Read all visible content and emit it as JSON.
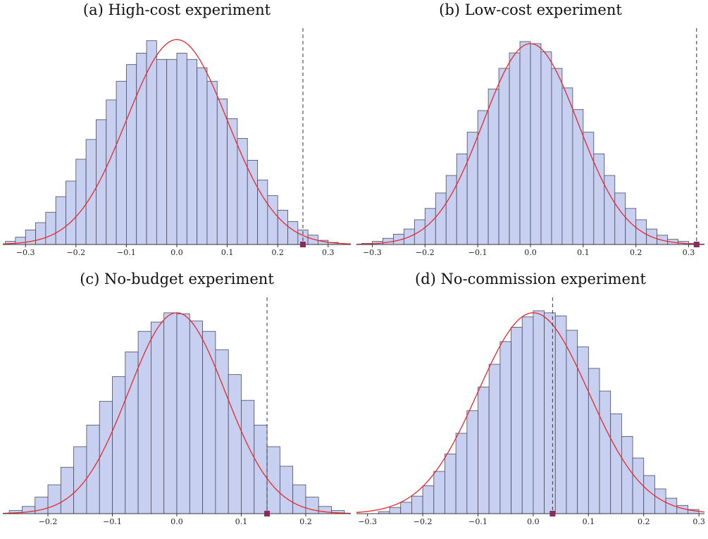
{
  "chart_data": [
    {
      "type": "bar",
      "title": "(a) High-cost experiment",
      "xlabel": "",
      "ylabel": "",
      "xlim": [
        -0.345,
        0.345
      ],
      "ylim": [
        0,
        1.04
      ],
      "bin_start": -0.34,
      "bin_width": 0.02,
      "values": [
        0.015,
        0.035,
        0.07,
        0.105,
        0.155,
        0.23,
        0.305,
        0.41,
        0.505,
        0.6,
        0.695,
        0.785,
        0.865,
        0.92,
        0.98,
        0.89,
        0.89,
        0.92,
        0.89,
        0.85,
        0.785,
        0.7,
        0.605,
        0.51,
        0.405,
        0.31,
        0.235,
        0.165,
        0.11,
        0.07,
        0.045,
        0.02,
        0.01
      ],
      "normal_fit": {
        "mean": 0.0,
        "sd": 0.1,
        "peak": 0.985
      },
      "observed": 0.25,
      "xticks": [
        -0.3,
        -0.2,
        -0.1,
        0.0,
        0.1,
        0.2,
        0.3
      ],
      "xtick_labels": [
        "−0.3",
        "−0.2",
        "−0.1",
        "0.0",
        "0.1",
        "0.2",
        "0.3"
      ]
    },
    {
      "type": "bar",
      "title": "(b) Low-cost experiment",
      "xlabel": "",
      "ylabel": "",
      "xlim": [
        -0.33,
        0.33
      ],
      "ylim": [
        0,
        1.05
      ],
      "bin_start": -0.32,
      "bin_width": 0.02,
      "values": [
        0.005,
        0.015,
        0.03,
        0.05,
        0.075,
        0.12,
        0.175,
        0.25,
        0.335,
        0.44,
        0.545,
        0.65,
        0.755,
        0.855,
        0.93,
        0.985,
        0.975,
        0.935,
        0.855,
        0.76,
        0.655,
        0.545,
        0.44,
        0.335,
        0.25,
        0.175,
        0.12,
        0.075,
        0.045,
        0.025,
        0.015,
        0.005
      ],
      "normal_fit": {
        "mean": 0.0,
        "sd": 0.09,
        "peak": 0.975
      },
      "observed": 0.315,
      "xticks": [
        -0.3,
        -0.2,
        -0.1,
        0.0,
        0.1,
        0.2,
        0.3
      ],
      "xtick_labels": [
        "−0.3",
        "−0.2",
        "−0.1",
        "0.0",
        "0.1",
        "0.2",
        "0.3"
      ]
    },
    {
      "type": "bar",
      "title": "(c) No-budget experiment",
      "xlabel": "",
      "ylabel": "",
      "xlim": [
        -0.27,
        0.27
      ],
      "ylim": [
        0,
        1.05
      ],
      "bin_start": -0.26,
      "bin_width": 0.02,
      "values": [
        0.015,
        0.035,
        0.08,
        0.14,
        0.225,
        0.325,
        0.43,
        0.545,
        0.665,
        0.785,
        0.885,
        0.93,
        0.975,
        0.97,
        0.935,
        0.885,
        0.795,
        0.675,
        0.55,
        0.43,
        0.325,
        0.23,
        0.14,
        0.08,
        0.035,
        0.015
      ],
      "normal_fit": {
        "mean": 0.0,
        "sd": 0.075,
        "peak": 0.975
      },
      "observed": 0.14,
      "xticks": [
        -0.2,
        -0.1,
        0.0,
        0.1,
        0.2
      ],
      "xtick_labels": [
        "−0.2",
        "−0.1",
        "0.0",
        "0.1",
        "0.2"
      ]
    },
    {
      "type": "bar",
      "title": "(d) No-commission experiment",
      "xlabel": "",
      "ylabel": "",
      "xlim": [
        -0.32,
        0.31
      ],
      "ylim": [
        0,
        1.05
      ],
      "bin_start": -0.28,
      "bin_width": 0.02,
      "values": [
        0.01,
        0.03,
        0.055,
        0.085,
        0.135,
        0.205,
        0.29,
        0.39,
        0.5,
        0.615,
        0.725,
        0.835,
        0.905,
        0.955,
        0.985,
        0.975,
        0.96,
        0.89,
        0.81,
        0.705,
        0.595,
        0.485,
        0.375,
        0.27,
        0.185,
        0.12,
        0.075,
        0.04,
        0.02
      ],
      "normal_fit": {
        "mean": 0.0,
        "sd": 0.1,
        "peak": 0.975
      },
      "observed": 0.035,
      "xticks": [
        -0.3,
        -0.2,
        -0.1,
        0.0,
        0.1,
        0.2,
        0.3
      ],
      "xtick_labels": [
        "−0.3",
        "−0.2",
        "−0.1",
        "0.0",
        "0.1",
        "0.2",
        "0.3"
      ]
    }
  ],
  "colors": {
    "bar_fill": "#c8d0f2",
    "bar_stroke": "#4a4a5c",
    "fit_curve": "#e8282c",
    "observed_line": "#333333",
    "observed_marker": "#8b2a5e",
    "axis": "#333333"
  }
}
